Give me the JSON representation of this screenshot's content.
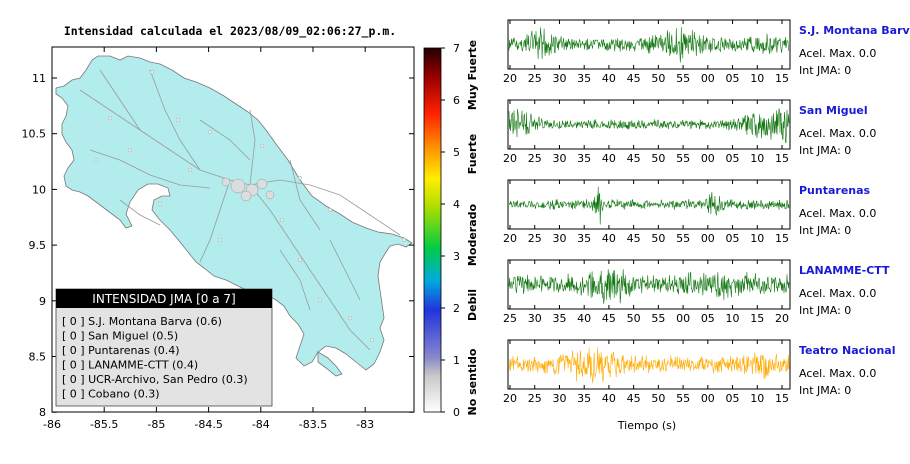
{
  "map": {
    "title": "Intensidad calculada el 2023/08/09_02:06:27_p.m.",
    "y_ticks": [
      "11",
      "10.5",
      "10",
      "9.5",
      "9",
      "8.5",
      "8"
    ],
    "x_ticks": [
      "-86",
      "-85.5",
      "-85",
      "-84.5",
      "-84",
      "-83.5",
      "-83"
    ],
    "colors": {
      "land": "#b3ecec",
      "road": "#9a9a9a",
      "border": "#777777"
    }
  },
  "colorbar": {
    "ticks": [
      "7",
      "6",
      "5",
      "4",
      "3",
      "2",
      "1",
      "0"
    ],
    "labels": [
      "Muy Fuerte",
      "Fuerte",
      "Moderado",
      "Debil",
      "No sentido"
    ]
  },
  "legend": {
    "header": "INTENSIDAD JMA [0 a 7]",
    "items": [
      "[ 0 ]  S.J. Montana Barva (0.6)",
      "[ 0 ]  San Miguel (0.5)",
      "[ 0 ]  Puntarenas (0.4)",
      "[ 0 ]  LANAMME-CTT (0.4)",
      "[ 0 ]  UCR-Archivo, San Pedro (0.3)",
      "[ 0 ]  Cobano (0.3)"
    ]
  },
  "stations": [
    {
      "name": "S.J. Montana Barva",
      "acel": "Acel. Max. 0.0",
      "int": "Int JMA: 0",
      "ticks": [
        "20",
        "25",
        "30",
        "35",
        "40",
        "45",
        "50",
        "55",
        "00",
        "05",
        "10",
        "15"
      ],
      "color": "#117711"
    },
    {
      "name": "San Miguel",
      "acel": "Acel. Max. 0.0",
      "int": "Int JMA: 0",
      "ticks": [
        "20",
        "25",
        "30",
        "35",
        "40",
        "45",
        "50",
        "55",
        "00",
        "05",
        "10",
        "15"
      ],
      "color": "#117711"
    },
    {
      "name": "Puntarenas",
      "acel": "Acel. Max. 0.0",
      "int": "Int JMA: 0",
      "ticks": [
        "20",
        "25",
        "30",
        "35",
        "40",
        "45",
        "50",
        "55",
        "00",
        "05",
        "10",
        "15"
      ],
      "color": "#117711"
    },
    {
      "name": "LANAMME-CTT",
      "acel": "Acel. Max. 0.0",
      "int": "Int JMA: 0",
      "ticks": [
        "25",
        "30",
        "35",
        "40",
        "45",
        "50",
        "55",
        "00",
        "05",
        "10",
        "15",
        "20"
      ],
      "color": "#117711"
    },
    {
      "name": "Teatro Nacional",
      "acel": "Acel. Max. 0.0",
      "int": "Int JMA: 0",
      "ticks": [
        "20",
        "25",
        "30",
        "35",
        "40",
        "45",
        "50",
        "55",
        "00",
        "05",
        "10",
        "15"
      ],
      "color": "#ffaa00"
    }
  ],
  "xlabel": "Tiempo (s)"
}
